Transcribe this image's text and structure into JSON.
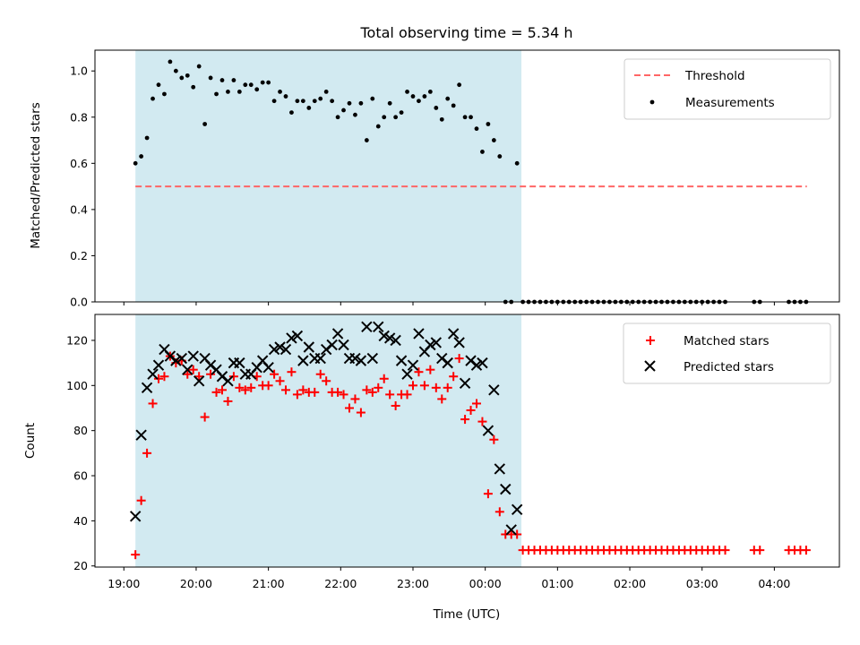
{
  "colors": {
    "background": "#ffffff",
    "shade": "#add8e6",
    "threshold": "#ff6666",
    "measurements": "#000000",
    "matched": "#ff0000",
    "predicted": "#000000"
  },
  "chart_data": [
    {
      "type": "scatter",
      "title": "Total observing time = 5.34 h",
      "xlabel": "",
      "ylabel": "Matched/Predicted stars",
      "x_unit": "hours since 19:00 UTC",
      "xlim": [
        -0.4,
        9.9
      ],
      "ylim": [
        0.0,
        1.09
      ],
      "yticks": [
        0.0,
        0.2,
        0.4,
        0.6,
        0.8,
        1.0
      ],
      "ytick_labels": [
        "0.0",
        "0.2",
        "0.4",
        "0.6",
        "0.8",
        "1.0"
      ],
      "xticks": [
        0,
        1,
        2,
        3,
        4,
        5,
        6,
        7,
        8,
        9
      ],
      "xtick_labels": [],
      "grid": false,
      "legend_position": "top-right",
      "shaded_span": [
        0.16,
        5.5
      ],
      "threshold": {
        "name": "Threshold",
        "value": 0.5,
        "x_range": [
          0.16,
          9.45
        ],
        "style": "dashed"
      },
      "series": [
        {
          "name": "Measurements",
          "x": [
            0.16,
            0.24,
            0.32,
            0.4,
            0.48,
            0.56,
            0.64,
            0.72,
            0.8,
            0.88,
            0.96,
            1.04,
            1.12,
            1.2,
            1.28,
            1.36,
            1.44,
            1.52,
            1.6,
            1.68,
            1.76,
            1.84,
            1.92,
            2.0,
            2.08,
            2.16,
            2.24,
            2.32,
            2.4,
            2.48,
            2.56,
            2.64,
            2.72,
            2.8,
            2.88,
            2.96,
            3.04,
            3.12,
            3.2,
            3.28,
            3.36,
            3.44,
            3.52,
            3.6,
            3.68,
            3.76,
            3.84,
            3.92,
            4.0,
            4.08,
            4.16,
            4.24,
            4.32,
            4.4,
            4.48,
            4.56,
            4.64,
            4.72,
            4.8,
            4.88,
            4.96,
            5.04,
            5.12,
            5.2,
            5.28,
            5.36,
            5.44,
            5.52,
            5.6,
            5.68,
            5.76,
            5.84,
            5.92,
            6.0,
            6.08,
            6.16,
            6.24,
            6.32,
            6.4,
            6.48,
            6.56,
            6.64,
            6.72,
            6.8,
            6.88,
            6.96,
            7.04,
            7.12,
            7.2,
            7.28,
            7.36,
            7.44,
            7.52,
            7.6,
            7.68,
            7.76,
            7.84,
            7.92,
            8.0,
            8.08,
            8.16,
            8.24,
            8.32,
            8.72,
            8.8,
            9.2,
            9.28,
            9.36,
            9.44
          ],
          "y": [
            0.6,
            0.63,
            0.71,
            0.88,
            0.94,
            0.9,
            1.04,
            1.0,
            0.97,
            0.98,
            0.93,
            1.02,
            0.77,
            0.97,
            0.9,
            0.96,
            0.91,
            0.96,
            0.91,
            0.94,
            0.94,
            0.92,
            0.95,
            0.95,
            0.87,
            0.91,
            0.89,
            0.82,
            0.87,
            0.87,
            0.84,
            0.87,
            0.88,
            0.91,
            0.87,
            0.8,
            0.83,
            0.86,
            0.81,
            0.86,
            0.7,
            0.88,
            0.76,
            0.8,
            0.86,
            0.8,
            0.82,
            0.91,
            0.89,
            0.87,
            0.89,
            0.91,
            0.84,
            0.79,
            0.88,
            0.85,
            0.94,
            0.8,
            0.8,
            0.75,
            0.65,
            0.77,
            0.7,
            0.63,
            0.0,
            0.0,
            0.6,
            0.0,
            0.0,
            0.0,
            0.0,
            0.0,
            0.0,
            0.0,
            0.0,
            0.0,
            0.0,
            0.0,
            0.0,
            0.0,
            0.0,
            0.0,
            0.0,
            0.0,
            0.0,
            0.0,
            0.0,
            0.0,
            0.0,
            0.0,
            0.0,
            0.0,
            0.0,
            0.0,
            0.0,
            0.0,
            0.0,
            0.0,
            0.0,
            0.0,
            0.0,
            0.0,
            0.0,
            0.0,
            0.0,
            0.0,
            0.0,
            0.0,
            0.0
          ]
        }
      ]
    },
    {
      "type": "scatter",
      "title": "",
      "xlabel": "Time (UTC)",
      "ylabel": "Count",
      "x_unit": "hours since 19:00 UTC",
      "xlim": [
        -0.4,
        9.9
      ],
      "ylim": [
        19.5,
        131.5
      ],
      "yticks": [
        20,
        40,
        60,
        80,
        100,
        120
      ],
      "ytick_labels": [
        "20",
        "40",
        "60",
        "80",
        "100",
        "120"
      ],
      "xticks": [
        0,
        1,
        2,
        3,
        4,
        5,
        6,
        7,
        8,
        9
      ],
      "xtick_labels": [
        "19:00",
        "20:00",
        "21:00",
        "22:00",
        "23:00",
        "00:00",
        "01:00",
        "02:00",
        "03:00",
        "04:00"
      ],
      "grid": false,
      "legend_position": "top-right",
      "shaded_span": [
        0.16,
        5.5
      ],
      "series": [
        {
          "name": "Matched stars",
          "marker": "plus",
          "x": [
            0.16,
            0.24,
            0.32,
            0.4,
            0.48,
            0.56,
            0.64,
            0.72,
            0.8,
            0.88,
            0.96,
            1.04,
            1.12,
            1.2,
            1.28,
            1.36,
            1.44,
            1.52,
            1.6,
            1.68,
            1.76,
            1.84,
            1.92,
            2.0,
            2.08,
            2.16,
            2.24,
            2.32,
            2.4,
            2.48,
            2.56,
            2.64,
            2.72,
            2.8,
            2.88,
            2.96,
            3.04,
            3.12,
            3.2,
            3.28,
            3.36,
            3.44,
            3.52,
            3.6,
            3.68,
            3.76,
            3.84,
            3.92,
            4.0,
            4.08,
            4.16,
            4.24,
            4.32,
            4.4,
            4.48,
            4.56,
            4.64,
            4.72,
            4.8,
            4.88,
            4.96,
            5.04,
            5.12,
            5.2,
            5.28,
            5.36,
            5.44,
            5.52,
            5.6,
            5.68,
            5.76,
            5.84,
            5.92,
            6.0,
            6.08,
            6.16,
            6.24,
            6.32,
            6.4,
            6.48,
            6.56,
            6.64,
            6.72,
            6.8,
            6.88,
            6.96,
            7.04,
            7.12,
            7.2,
            7.28,
            7.36,
            7.44,
            7.52,
            7.6,
            7.68,
            7.76,
            7.84,
            7.92,
            8.0,
            8.08,
            8.16,
            8.24,
            8.32,
            8.72,
            8.8,
            9.2,
            9.28,
            9.36,
            9.44
          ],
          "y": [
            25,
            49,
            70,
            92,
            103,
            104,
            113,
            110,
            111,
            105,
            107,
            104,
            86,
            105,
            97,
            98,
            93,
            104,
            99,
            98,
            99,
            104,
            100,
            100,
            105,
            102,
            98,
            106,
            96,
            98,
            97,
            97,
            105,
            102,
            97,
            97,
            96,
            90,
            94,
            88,
            98,
            97,
            99,
            103,
            96,
            91,
            96,
            96,
            100,
            106,
            100,
            107,
            99,
            94,
            99,
            104,
            112,
            85,
            89,
            92,
            84,
            52,
            76,
            44,
            34,
            34,
            34,
            27,
            27,
            27,
            27,
            27,
            27,
            27,
            27,
            27,
            27,
            27,
            27,
            27,
            27,
            27,
            27,
            27,
            27,
            27,
            27,
            27,
            27,
            27,
            27,
            27,
            27,
            27,
            27,
            27,
            27,
            27,
            27,
            27,
            27,
            27,
            27,
            27,
            27,
            27,
            27,
            27,
            27
          ]
        },
        {
          "name": "Predicted stars",
          "marker": "x",
          "x": [
            0.16,
            0.24,
            0.32,
            0.4,
            0.48,
            0.56,
            0.64,
            0.72,
            0.8,
            0.88,
            0.96,
            1.04,
            1.12,
            1.2,
            1.28,
            1.36,
            1.44,
            1.52,
            1.6,
            1.68,
            1.76,
            1.84,
            1.92,
            2.0,
            2.08,
            2.16,
            2.24,
            2.32,
            2.4,
            2.48,
            2.56,
            2.64,
            2.72,
            2.8,
            2.88,
            2.96,
            3.04,
            3.12,
            3.2,
            3.28,
            3.36,
            3.44,
            3.52,
            3.6,
            3.68,
            3.76,
            3.84,
            3.92,
            4.0,
            4.08,
            4.16,
            4.24,
            4.32,
            4.4,
            4.48,
            4.56,
            4.64,
            4.72,
            4.8,
            4.88,
            4.96,
            5.04,
            5.12,
            5.2,
            5.28,
            5.36,
            5.44
          ],
          "y": [
            42,
            78,
            99,
            105,
            109,
            116,
            113,
            111,
            112,
            107,
            113,
            102,
            112,
            109,
            107,
            104,
            102,
            110,
            110,
            105,
            105,
            108,
            111,
            108,
            116,
            117,
            116,
            121,
            122,
            111,
            117,
            112,
            112,
            116,
            118,
            123,
            118,
            112,
            112,
            111,
            126,
            112,
            126,
            122,
            121,
            120,
            111,
            105,
            109,
            123,
            115,
            118,
            119,
            112,
            110,
            123,
            119,
            101,
            111,
            109,
            110,
            80,
            98,
            63,
            54,
            36,
            45
          ]
        }
      ]
    }
  ]
}
